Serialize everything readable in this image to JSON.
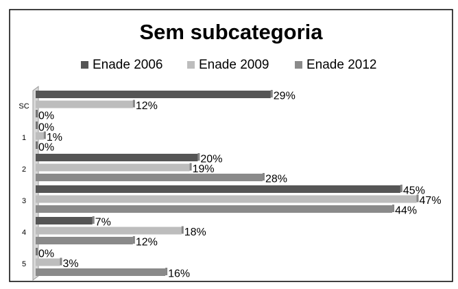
{
  "chart_data": {
    "type": "bar",
    "orientation": "horizontal",
    "title": "Sem subcategoria",
    "categories": [
      "SC",
      "1",
      "2",
      "3",
      "4",
      "5"
    ],
    "series": [
      {
        "name": "Enade 2006",
        "color": "#555555",
        "values": [
          29,
          0,
          20,
          45,
          7,
          0
        ],
        "value_labels": [
          "29%",
          "0%",
          "20%",
          "45%",
          "7%",
          "0%"
        ]
      },
      {
        "name": "Enade 2009",
        "color": "#bdbdbd",
        "values": [
          12,
          1,
          19,
          47,
          18,
          3
        ],
        "value_labels": [
          "12%",
          "1%",
          "19%",
          "47%",
          "18%",
          "3%"
        ]
      },
      {
        "name": "Enade 2012",
        "color": "#8a8a8a",
        "values": [
          0,
          0,
          28,
          44,
          12,
          16
        ],
        "value_labels": [
          "0%",
          "0%",
          "28%",
          "44%",
          "12%",
          "16%"
        ]
      }
    ],
    "xlim": [
      0,
      50
    ],
    "legend": "top"
  }
}
